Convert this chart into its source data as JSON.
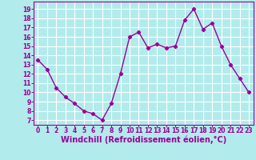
{
  "x": [
    0,
    1,
    2,
    3,
    4,
    5,
    6,
    7,
    8,
    9,
    10,
    11,
    12,
    13,
    14,
    15,
    16,
    17,
    18,
    19,
    20,
    21,
    22,
    23
  ],
  "y": [
    13.5,
    12.5,
    10.5,
    9.5,
    8.8,
    8.0,
    7.7,
    7.0,
    8.8,
    12.0,
    16.0,
    16.5,
    14.8,
    15.2,
    14.8,
    15.0,
    17.8,
    19.0,
    16.8,
    17.5,
    15.0,
    13.0,
    11.5,
    10.0
  ],
  "line_color": "#990099",
  "marker": "D",
  "marker_size": 2.2,
  "bg_color": "#b2ebeb",
  "grid_color": "#ffffff",
  "xlabel": "Windchill (Refroidissement éolien,°C)",
  "xlabel_color": "#990099",
  "yticks": [
    7,
    8,
    9,
    10,
    11,
    12,
    13,
    14,
    15,
    16,
    17,
    18,
    19
  ],
  "xticks": [
    0,
    1,
    2,
    3,
    4,
    5,
    6,
    7,
    8,
    9,
    10,
    11,
    12,
    13,
    14,
    15,
    16,
    17,
    18,
    19,
    20,
    21,
    22,
    23
  ],
  "ylim": [
    6.5,
    19.8
  ],
  "xlim": [
    -0.5,
    23.5
  ],
  "tick_label_color": "#990099",
  "tick_label_size": 5.5,
  "xlabel_size": 7.0,
  "line_width": 1.0
}
